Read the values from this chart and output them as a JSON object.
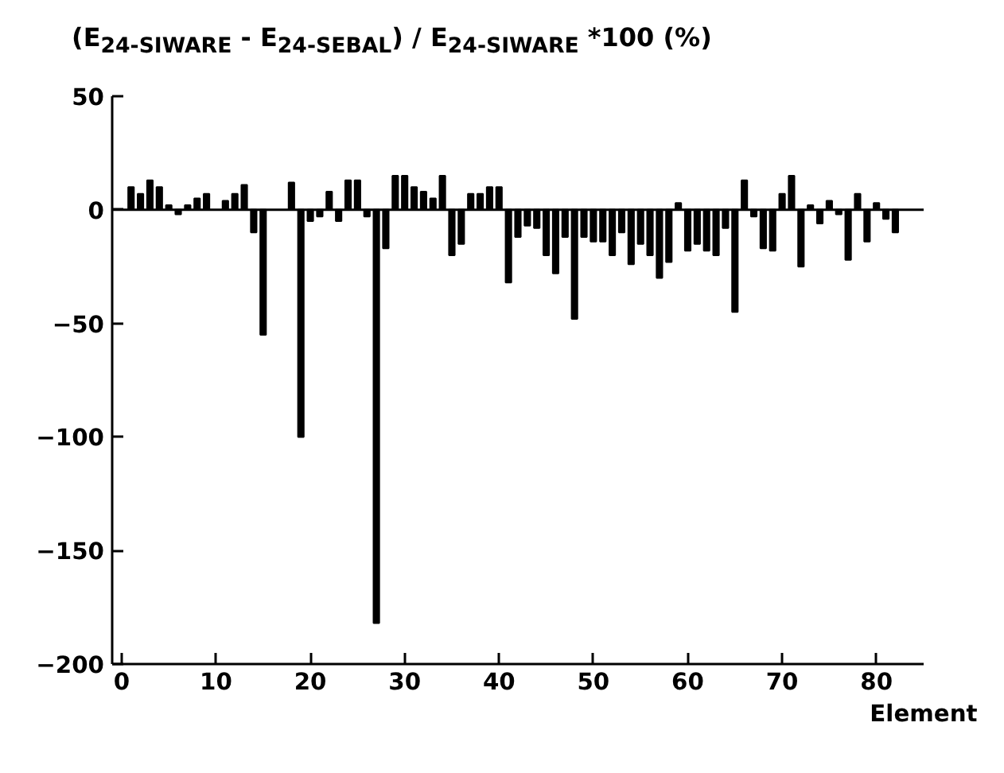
{
  "chart_data": {
    "type": "bar",
    "ylabel": "(E$_{24-SIWARE}$ - E$_{24-SEBAL}$) / E$_{24-SIWARE}$ *100 (%)",
    "xlabel": "Element",
    "x": [
      1,
      2,
      3,
      4,
      5,
      6,
      7,
      8,
      9,
      10,
      11,
      12,
      13,
      14,
      15,
      16,
      17,
      18,
      19,
      20,
      21,
      22,
      23,
      24,
      25,
      26,
      27,
      28,
      29,
      30,
      31,
      32,
      33,
      34,
      35,
      36,
      37,
      38,
      39,
      40,
      41,
      42,
      43,
      44,
      45,
      46,
      47,
      48,
      49,
      50,
      51,
      52,
      53,
      54,
      55,
      56,
      57,
      58,
      59,
      60,
      61,
      62,
      63,
      64,
      65,
      66,
      67,
      68,
      69,
      70,
      71,
      72,
      73,
      74,
      75,
      76,
      77,
      78,
      79,
      80,
      81,
      82
    ],
    "values": [
      10,
      7,
      13,
      10,
      2,
      -2,
      2,
      5,
      7,
      null,
      4,
      7,
      11,
      -10,
      -55,
      null,
      null,
      12,
      -100,
      -5,
      -3,
      8,
      -5,
      13,
      13,
      -3,
      -182,
      -17,
      15,
      15,
      10,
      8,
      5,
      15,
      -20,
      -15,
      7,
      7,
      10,
      10,
      -32,
      -12,
      -7,
      -8,
      -20,
      -28,
      -12,
      -48,
      -12,
      -14,
      -14,
      -20,
      -10,
      -24,
      -15,
      -20,
      -30,
      -23,
      3,
      -18,
      -15,
      -18,
      -20,
      -8,
      -45,
      13,
      -3,
      -17,
      -18,
      7,
      15,
      -25,
      2,
      -6,
      4,
      -2,
      -22,
      7,
      -14,
      3,
      -4,
      -10
    ],
    "color": "#000000",
    "xlim": [
      -1,
      85
    ],
    "ylim": [
      -200,
      50
    ],
    "xticks": [
      0,
      10,
      20,
      30,
      40,
      50,
      60,
      70,
      80
    ],
    "yticks": [
      -200,
      -150,
      -100,
      -50,
      0,
      50
    ],
    "ref_lines": [
      {
        "axis": "y",
        "value": 0,
        "color": "#000000"
      }
    ],
    "grid": false
  }
}
